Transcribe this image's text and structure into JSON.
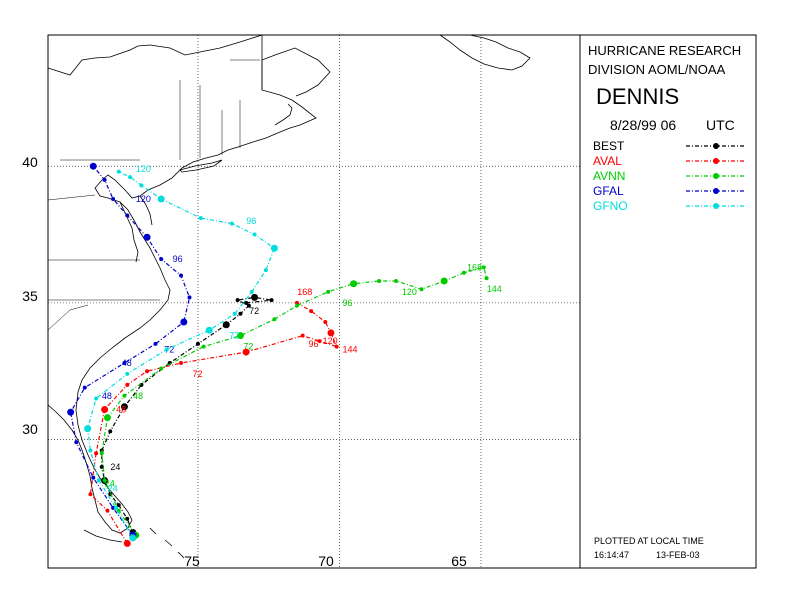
{
  "header": {
    "org_line1": "HURRICANE RESEARCH",
    "org_line2": "DIVISION AOML/NOAA",
    "storm_name": "DENNIS",
    "datetime": "8/28/99 06",
    "utc": "UTC"
  },
  "footer": {
    "plotted_label": "PLOTTED AT LOCAL TIME",
    "time": "16:14:47",
    "date": "13-FEB-03"
  },
  "axes": {
    "lat_ticks": [
      "40",
      "35",
      "30"
    ],
    "lon_ticks": [
      "75",
      "70",
      "65"
    ]
  },
  "legend": [
    {
      "name": "BEST",
      "color": "#000000"
    },
    {
      "name": "AVAL",
      "color": "#ff0000"
    },
    {
      "name": "AVNN",
      "color": "#00cc00"
    },
    {
      "name": "GFAL",
      "color": "#0000cc"
    },
    {
      "name": "GFNO",
      "color": "#00dddd"
    }
  ],
  "map_data": {
    "projection": "lon/lat rectilinear",
    "lon_range": [
      -80.3,
      -61.5
    ],
    "lat_range": [
      25.3,
      44.8
    ],
    "tracks": [
      {
        "name": "BEST",
        "color": "#000000",
        "points": [
          {
            "lon": -77.3,
            "lat": 26.6
          },
          {
            "lon": -77.5,
            "lat": 27.1
          },
          {
            "lon": -77.8,
            "lat": 27.6
          },
          {
            "lon": -78.1,
            "lat": 28.0
          },
          {
            "lon": -78.3,
            "lat": 28.5
          },
          {
            "lon": -78.4,
            "lat": 29.0
          },
          {
            "lon": -78.4,
            "lat": 29.6
          },
          {
            "lon": -78.1,
            "lat": 30.3
          },
          {
            "lon": -77.6,
            "lat": 31.2
          },
          {
            "lon": -77.0,
            "lat": 32.0
          },
          {
            "lon": -76.0,
            "lat": 32.8
          },
          {
            "lon": -75.0,
            "lat": 33.5
          },
          {
            "lon": -74.0,
            "lat": 34.2
          },
          {
            "lon": -73.5,
            "lat": 34.6
          },
          {
            "lon": -73.2,
            "lat": 34.9
          },
          {
            "lon": -73.6,
            "lat": 35.1
          },
          {
            "lon": -73.0,
            "lat": 35.2
          },
          {
            "lon": -72.4,
            "lat": 35.1
          },
          {
            "lon": -73.3,
            "lat": 35.0
          }
        ],
        "labels": [
          {
            "lon": -78.2,
            "lat": 29.0,
            "text": "24"
          },
          {
            "lon": -73.3,
            "lat": 34.7,
            "text": "72"
          }
        ]
      },
      {
        "name": "AVAL",
        "color": "#ff0000",
        "points": [
          {
            "lon": -77.5,
            "lat": 26.2
          },
          {
            "lon": -78.2,
            "lat": 27.4
          },
          {
            "lon": -78.8,
            "lat": 28.0
          },
          {
            "lon": -78.6,
            "lat": 29.5
          },
          {
            "lon": -78.3,
            "lat": 31.1
          },
          {
            "lon": -77.5,
            "lat": 32.0
          },
          {
            "lon": -76.8,
            "lat": 32.5
          },
          {
            "lon": -75.6,
            "lat": 32.8
          },
          {
            "lon": -73.3,
            "lat": 33.2
          },
          {
            "lon": -71.3,
            "lat": 33.8
          },
          {
            "lon": -70.7,
            "lat": 33.6
          },
          {
            "lon": -70.1,
            "lat": 33.4
          },
          {
            "lon": -70.3,
            "lat": 33.9
          },
          {
            "lon": -70.5,
            "lat": 34.3
          },
          {
            "lon": -71.0,
            "lat": 34.7
          },
          {
            "lon": -71.5,
            "lat": 35.0
          }
        ],
        "labels": [
          {
            "lon": -78.0,
            "lat": 31.1,
            "text": "48"
          },
          {
            "lon": -75.3,
            "lat": 32.4,
            "text": "72"
          },
          {
            "lon": -71.2,
            "lat": 33.5,
            "text": "96"
          },
          {
            "lon": -70.7,
            "lat": 33.6,
            "text": "120"
          },
          {
            "lon": -70.0,
            "lat": 33.3,
            "text": "144"
          },
          {
            "lon": -71.6,
            "lat": 35.4,
            "text": "168"
          }
        ]
      },
      {
        "name": "AVNN",
        "color": "#00cc00",
        "points": [
          {
            "lon": -77.2,
            "lat": 26.5
          },
          {
            "lon": -77.8,
            "lat": 27.4
          },
          {
            "lon": -78.3,
            "lat": 28.5
          },
          {
            "lon": -78.4,
            "lat": 29.5
          },
          {
            "lon": -78.2,
            "lat": 30.8
          },
          {
            "lon": -77.6,
            "lat": 31.6
          },
          {
            "lon": -76.3,
            "lat": 32.6
          },
          {
            "lon": -74.8,
            "lat": 33.4
          },
          {
            "lon": -73.5,
            "lat": 33.8
          },
          {
            "lon": -72.3,
            "lat": 34.4
          },
          {
            "lon": -71.5,
            "lat": 34.9
          },
          {
            "lon": -70.4,
            "lat": 35.4
          },
          {
            "lon": -69.5,
            "lat": 35.7
          },
          {
            "lon": -68.6,
            "lat": 35.8
          },
          {
            "lon": -68.0,
            "lat": 35.8
          },
          {
            "lon": -67.1,
            "lat": 35.5
          },
          {
            "lon": -66.3,
            "lat": 35.8
          },
          {
            "lon": -65.6,
            "lat": 36.1
          },
          {
            "lon": -64.9,
            "lat": 36.3
          },
          {
            "lon": -64.8,
            "lat": 35.9
          }
        ],
        "labels": [
          {
            "lon": -78.4,
            "lat": 28.4,
            "text": "24"
          },
          {
            "lon": -77.4,
            "lat": 31.6,
            "text": "48"
          },
          {
            "lon": -73.5,
            "lat": 33.4,
            "text": "72"
          },
          {
            "lon": -70.0,
            "lat": 35.0,
            "text": "96"
          },
          {
            "lon": -67.9,
            "lat": 35.4,
            "text": "120"
          },
          {
            "lon": -64.9,
            "lat": 35.5,
            "text": "144"
          },
          {
            "lon": -65.6,
            "lat": 36.3,
            "text": "168"
          }
        ]
      },
      {
        "name": "GFAL",
        "color": "#0000cc",
        "points": [
          {
            "lon": -77.3,
            "lat": 26.5
          },
          {
            "lon": -78.0,
            "lat": 27.5
          },
          {
            "lon": -78.7,
            "lat": 28.6
          },
          {
            "lon": -79.3,
            "lat": 29.9
          },
          {
            "lon": -79.5,
            "lat": 31.0
          },
          {
            "lon": -79.0,
            "lat": 31.9
          },
          {
            "lon": -77.6,
            "lat": 32.8
          },
          {
            "lon": -76.5,
            "lat": 33.5
          },
          {
            "lon": -75.5,
            "lat": 34.3
          },
          {
            "lon": -75.3,
            "lat": 35.2
          },
          {
            "lon": -75.6,
            "lat": 36.0
          },
          {
            "lon": -76.3,
            "lat": 36.6
          },
          {
            "lon": -76.8,
            "lat": 37.4
          },
          {
            "lon": -77.5,
            "lat": 38.2
          },
          {
            "lon": -78.0,
            "lat": 38.8
          },
          {
            "lon": -78.3,
            "lat": 39.5
          },
          {
            "lon": -78.7,
            "lat": 40.0
          }
        ],
        "labels": [
          {
            "lon": -78.5,
            "lat": 31.6,
            "text": "48"
          },
          {
            "lon": -76.3,
            "lat": 33.3,
            "text": "72"
          },
          {
            "lon": -77.8,
            "lat": 32.8,
            "text": "48"
          },
          {
            "lon": -76.0,
            "lat": 36.6,
            "text": "96"
          },
          {
            "lon": -77.3,
            "lat": 38.8,
            "text": "120"
          }
        ]
      },
      {
        "name": "GFNO",
        "color": "#00dddd",
        "points": [
          {
            "lon": -77.3,
            "lat": 26.4
          },
          {
            "lon": -77.9,
            "lat": 27.5
          },
          {
            "lon": -78.5,
            "lat": 28.5
          },
          {
            "lon": -78.8,
            "lat": 29.6
          },
          {
            "lon": -78.9,
            "lat": 30.4
          },
          {
            "lon": -78.6,
            "lat": 31.5
          },
          {
            "lon": -77.5,
            "lat": 32.4
          },
          {
            "lon": -76.1,
            "lat": 33.3
          },
          {
            "lon": -74.6,
            "lat": 34.0
          },
          {
            "lon": -73.7,
            "lat": 34.6
          },
          {
            "lon": -73.1,
            "lat": 35.4
          },
          {
            "lon": -72.6,
            "lat": 36.2
          },
          {
            "lon": -72.3,
            "lat": 37.0
          },
          {
            "lon": -73.0,
            "lat": 37.5
          },
          {
            "lon": -73.8,
            "lat": 37.9
          },
          {
            "lon": -74.9,
            "lat": 38.1
          },
          {
            "lon": -76.3,
            "lat": 38.8
          },
          {
            "lon": -77.0,
            "lat": 39.3
          },
          {
            "lon": -77.4,
            "lat": 39.6
          },
          {
            "lon": -77.8,
            "lat": 39.8
          }
        ],
        "labels": [
          {
            "lon": -78.3,
            "lat": 28.2,
            "text": "24"
          },
          {
            "lon": -74.0,
            "lat": 33.8,
            "text": "72"
          },
          {
            "lon": -73.4,
            "lat": 38.0,
            "text": "96"
          },
          {
            "lon": -77.3,
            "lat": 39.9,
            "text": "120"
          }
        ]
      }
    ]
  }
}
